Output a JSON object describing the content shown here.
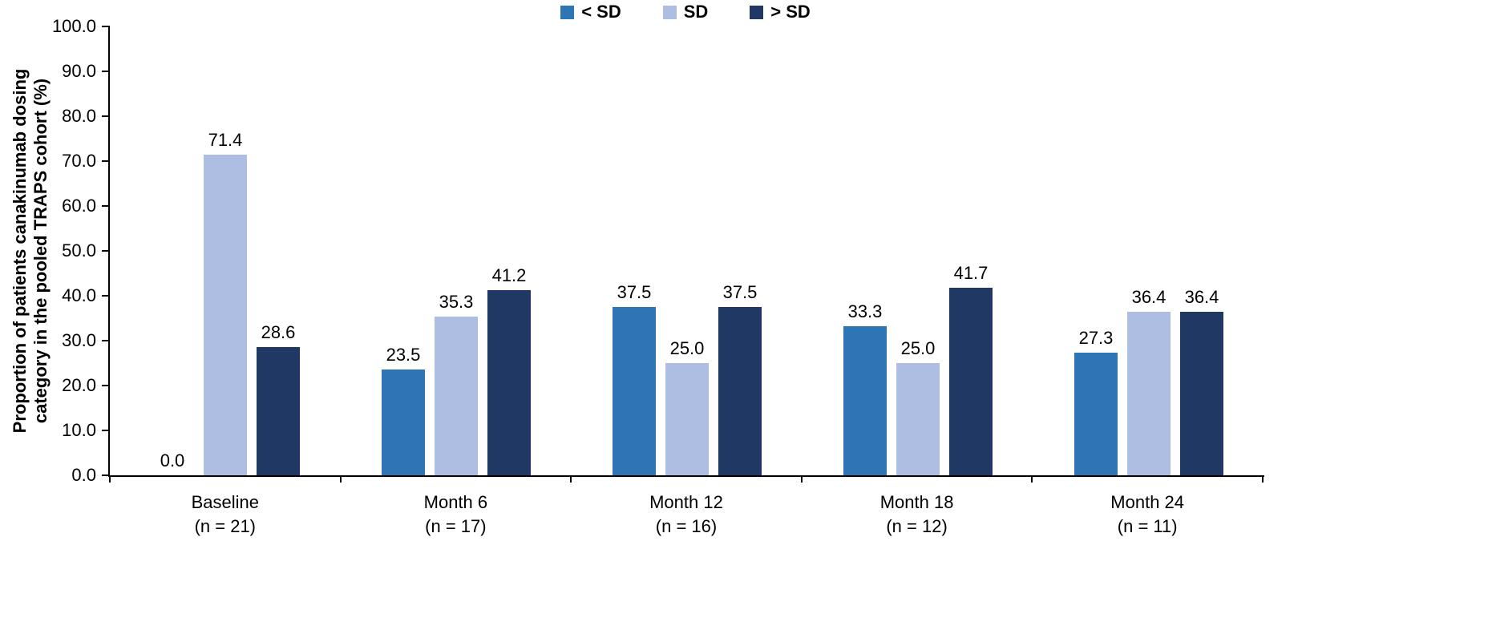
{
  "chart_data": {
    "type": "bar",
    "title": "",
    "ylabel": "Proportion of patients canakinumab dosing category in the pooled TRAPS cohort (%)",
    "ylabel_lines": [
      "Proportion of patients canakinumab dosing",
      "category in the pooled TRAPS cohort (%)"
    ],
    "xlabel": "",
    "ylim": [
      0,
      100
    ],
    "ytick_step": 10,
    "yticks": [
      "100.0",
      "90.0",
      "80.0",
      "70.0",
      "60.0",
      "50.0",
      "40.0",
      "30.0",
      "20.0",
      "10.0",
      "0.0"
    ],
    "grid": false,
    "legend_position": "top-center",
    "value_labels": true,
    "categories": [
      {
        "label": "Baseline",
        "sub": "(n = 21)"
      },
      {
        "label": "Month 6",
        "sub": "(n = 17)"
      },
      {
        "label": "Month 12",
        "sub": "(n = 16)"
      },
      {
        "label": "Month 18",
        "sub": "(n = 12)"
      },
      {
        "label": "Month 24",
        "sub": "(n = 11)"
      }
    ],
    "series": [
      {
        "name": "< SD",
        "color": "#2E75B6",
        "values": [
          0.0,
          23.5,
          37.5,
          33.3,
          27.3
        ]
      },
      {
        "name": "SD",
        "color": "#AEBEE2",
        "values": [
          71.4,
          35.3,
          25.0,
          25.0,
          36.4
        ]
      },
      {
        "name": "> SD",
        "color": "#203864",
        "values": [
          28.6,
          41.2,
          37.5,
          41.7,
          36.4
        ]
      }
    ],
    "colors": {
      "axis": "#000000",
      "text": "#000000",
      "background": "#FFFFFF"
    }
  }
}
